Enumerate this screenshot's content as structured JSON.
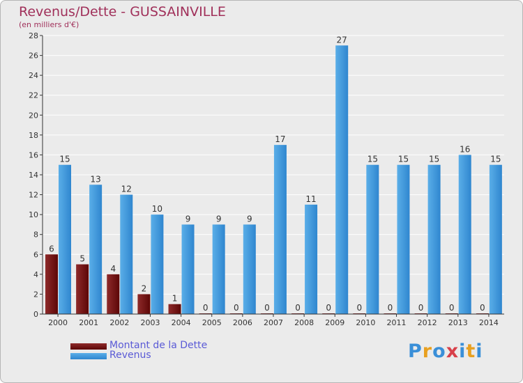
{
  "header": {
    "title": "Revenus/Dette - GUSSAINVILLE",
    "subtitle": "(en milliers d'€)"
  },
  "colors": {
    "dette": "#7a1010",
    "revenus": "#3a92da",
    "axis": "#333333",
    "grid": "#ffffff",
    "title": "#a0305a"
  },
  "legend": {
    "dette_label": "Montant de la Dette",
    "revenus_label": "Revenus"
  },
  "logo": {
    "letters": [
      "P",
      "r",
      "o",
      "x",
      "i",
      "t",
      "i"
    ],
    "colors": [
      "#3a8fd8",
      "#e8a020",
      "#3a8fd8",
      "#d8404a",
      "#3a8fd8",
      "#e8a020",
      "#3a8fd8"
    ]
  },
  "chart_data": {
    "type": "bar",
    "title": "Revenus/Dette - GUSSAINVILLE",
    "ylabel": "(en milliers d'€)",
    "xlabel": "",
    "ylim": [
      0,
      28
    ],
    "yticks": [
      0,
      2,
      4,
      6,
      8,
      10,
      12,
      14,
      16,
      18,
      20,
      22,
      24,
      26,
      28
    ],
    "categories": [
      "2000",
      "2001",
      "2002",
      "2003",
      "2004",
      "2005",
      "2006",
      "2007",
      "2008",
      "2009",
      "2010",
      "2011",
      "2012",
      "2013",
      "2014"
    ],
    "series": [
      {
        "name": "Montant de la Dette",
        "values": [
          6,
          5,
          4,
          2,
          1,
          0,
          0,
          0,
          0,
          0,
          0,
          0,
          0,
          0,
          0
        ]
      },
      {
        "name": "Revenus",
        "values": [
          15,
          13,
          12,
          10,
          9,
          9,
          9,
          17,
          11,
          27,
          15,
          15,
          15,
          16,
          15
        ]
      }
    ],
    "grid": true,
    "legend_position": "bottom-left"
  }
}
